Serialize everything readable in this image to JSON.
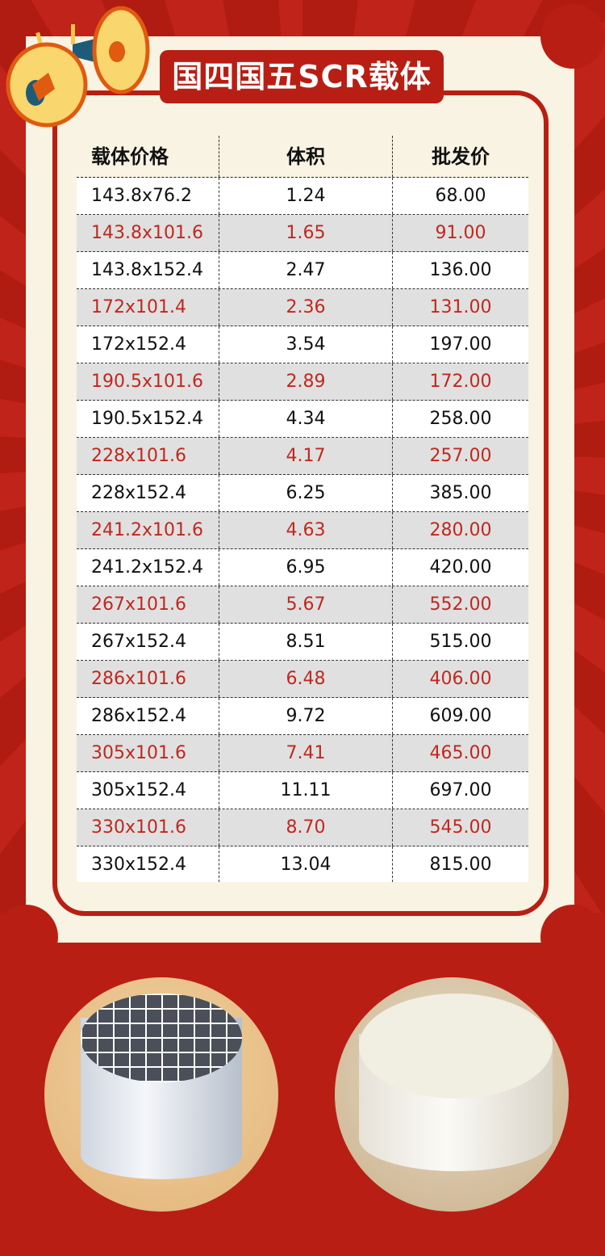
{
  "title": "国四国五SCR载体",
  "table": {
    "headers": [
      "载体价格",
      "体积",
      "批发价"
    ],
    "rows": [
      [
        "143.8x76.2",
        "1.24",
        "68.00"
      ],
      [
        "143.8x101.6",
        "1.65",
        "91.00"
      ],
      [
        "143.8x152.4",
        "2.47",
        "136.00"
      ],
      [
        "172x101.4",
        "2.36",
        "131.00"
      ],
      [
        "172x152.4",
        "3.54",
        "197.00"
      ],
      [
        "190.5x101.6",
        "2.89",
        "172.00"
      ],
      [
        "190.5x152.4",
        "4.34",
        "258.00"
      ],
      [
        "228x101.6",
        "4.17",
        "257.00"
      ],
      [
        "228x152.4",
        "6.25",
        "385.00"
      ],
      [
        "241.2x101.6",
        "4.63",
        "280.00"
      ],
      [
        "241.2x152.4",
        "6.95",
        "420.00"
      ],
      [
        "267x101.6",
        "5.67",
        "552.00"
      ],
      [
        "267x152.4",
        "8.51",
        "515.00"
      ],
      [
        "286x101.6",
        "6.48",
        "406.00"
      ],
      [
        "286x152.4",
        "9.72",
        "609.00"
      ],
      [
        "305x101.6",
        "7.41",
        "465.00"
      ],
      [
        "305x152.4",
        "11.11",
        "697.00"
      ],
      [
        "330x101.6",
        "8.70",
        "545.00"
      ],
      [
        "330x152.4",
        "13.04",
        "815.00"
      ]
    ]
  },
  "colors": {
    "brand_red": "#b91e14",
    "alt_text": "#c0281e",
    "cream": "#f8f3e2"
  },
  "icons": [
    "megaphone-icon"
  ]
}
